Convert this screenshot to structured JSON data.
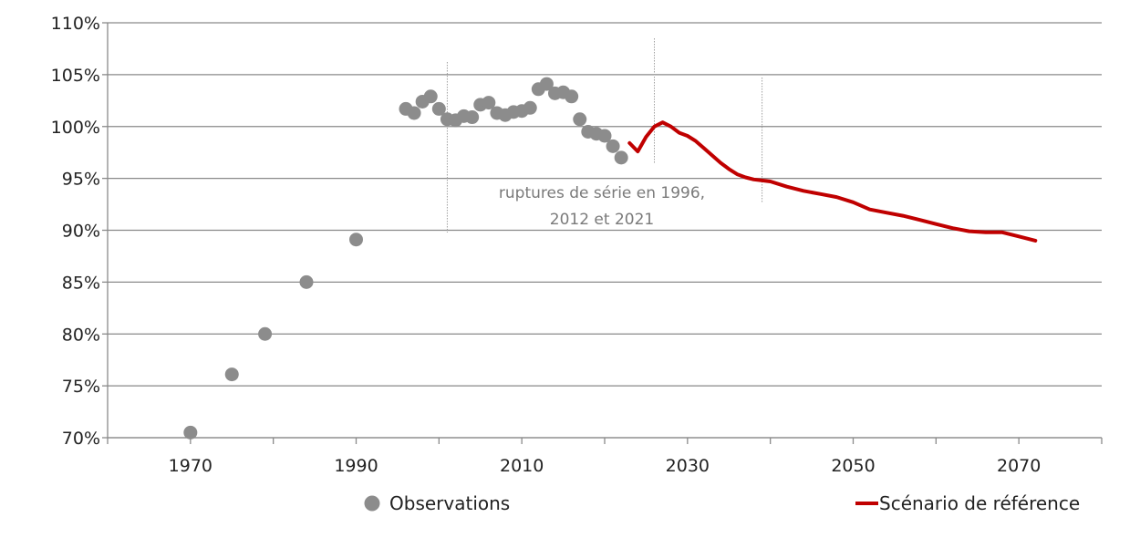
{
  "chart_data": {
    "type": "scatter",
    "xlim": [
      1960,
      2080
    ],
    "ylim": [
      70,
      110
    ],
    "y_unit": "%",
    "grid": "horizontal",
    "legend_placement": "bottom",
    "x_ticks": [
      1970,
      1990,
      2010,
      2030,
      2050,
      2070
    ],
    "y_ticks": [
      "70%",
      "75%",
      "80%",
      "85%",
      "90%",
      "95%",
      "100%",
      "105%",
      "110%"
    ],
    "series": [
      {
        "name": "Observations",
        "type": "scatter",
        "color": "#8c8c8c",
        "points": [
          [
            1970,
            70.5
          ],
          [
            1975,
            76.1
          ],
          [
            1979,
            80.0
          ],
          [
            1984,
            85.0
          ],
          [
            1990,
            89.1
          ],
          [
            1996,
            101.7
          ],
          [
            1997,
            101.3
          ],
          [
            1998,
            102.4
          ],
          [
            1999,
            102.9
          ],
          [
            2000,
            101.7
          ],
          [
            2001,
            100.7
          ],
          [
            2002,
            100.6
          ],
          [
            2003,
            101.0
          ],
          [
            2004,
            100.9
          ],
          [
            2005,
            102.1
          ],
          [
            2006,
            102.3
          ],
          [
            2007,
            101.3
          ],
          [
            2008,
            101.1
          ],
          [
            2009,
            101.4
          ],
          [
            2010,
            101.5
          ],
          [
            2011,
            101.8
          ],
          [
            2012,
            103.6
          ],
          [
            2013,
            104.1
          ],
          [
            2014,
            103.2
          ],
          [
            2015,
            103.3
          ],
          [
            2016,
            102.9
          ],
          [
            2017,
            100.7
          ],
          [
            2018,
            99.5
          ],
          [
            2019,
            99.3
          ],
          [
            2020,
            99.1
          ],
          [
            2021,
            98.1
          ],
          [
            2022,
            97.0
          ]
        ]
      },
      {
        "name": "Scénario de référence",
        "type": "line",
        "color": "#c00000",
        "points": [
          [
            2023,
            98.4
          ],
          [
            2024,
            97.6
          ],
          [
            2025,
            99.0
          ],
          [
            2026,
            100.0
          ],
          [
            2027,
            100.4
          ],
          [
            2028,
            100.0
          ],
          [
            2029,
            99.4
          ],
          [
            2030,
            99.1
          ],
          [
            2031,
            98.6
          ],
          [
            2032,
            97.9
          ],
          [
            2033,
            97.2
          ],
          [
            2034,
            96.5
          ],
          [
            2035,
            95.9
          ],
          [
            2036,
            95.4
          ],
          [
            2037,
            95.1
          ],
          [
            2038,
            94.9
          ],
          [
            2040,
            94.7
          ],
          [
            2042,
            94.2
          ],
          [
            2044,
            93.8
          ],
          [
            2046,
            93.5
          ],
          [
            2048,
            93.2
          ],
          [
            2050,
            92.7
          ],
          [
            2052,
            92.0
          ],
          [
            2054,
            91.7
          ],
          [
            2056,
            91.4
          ],
          [
            2058,
            91.0
          ],
          [
            2060,
            90.6
          ],
          [
            2062,
            90.2
          ],
          [
            2064,
            89.9
          ],
          [
            2066,
            89.8
          ],
          [
            2068,
            89.8
          ],
          [
            2070,
            89.4
          ],
          [
            2072,
            89.0
          ]
        ]
      }
    ],
    "breaks": [
      2001,
      2026,
      2039
    ],
    "annotation": [
      "ruptures de série en 1996,",
      "2012 et 2021"
    ]
  }
}
